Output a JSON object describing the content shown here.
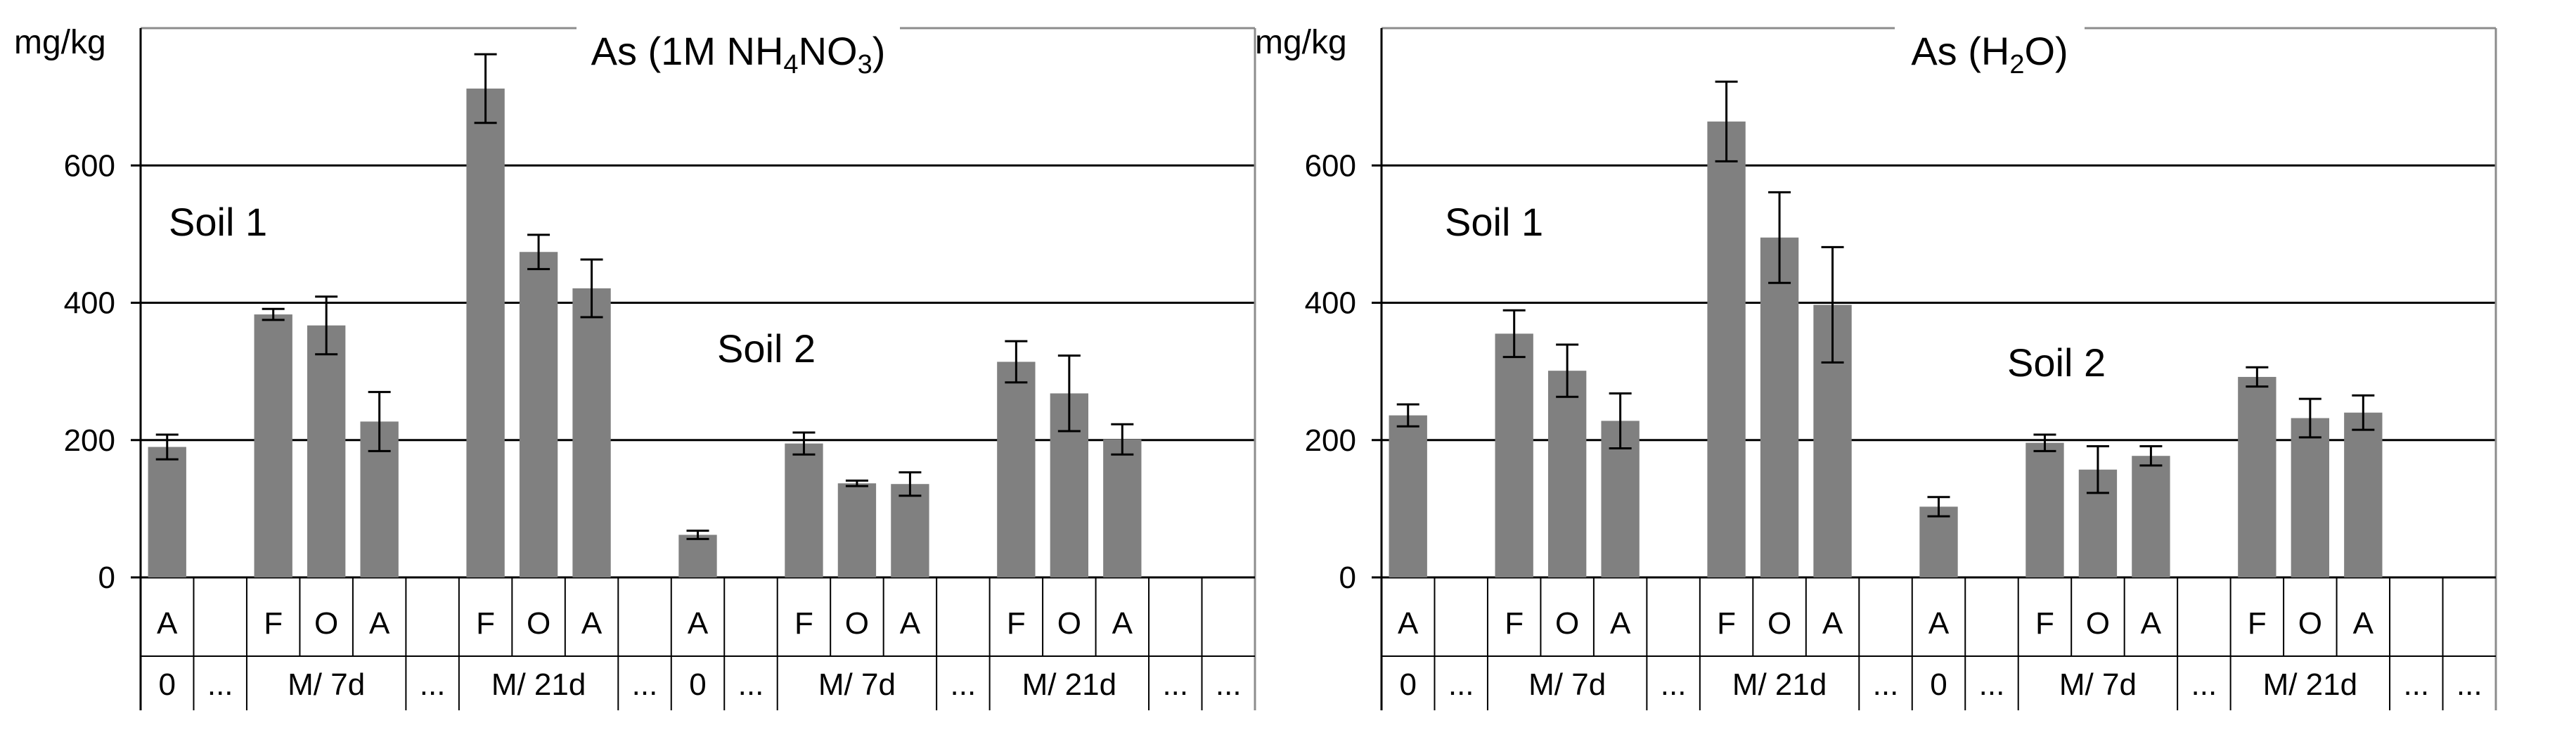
{
  "chart_data": [
    {
      "type": "bar",
      "title": {
        "prefix": "As (1M NH",
        "sub1": "4",
        "mid": "NO",
        "sub2": "3",
        "suffix": ")"
      },
      "ylabel": "mg/kg",
      "ylim": [
        0,
        800
      ],
      "yticks": [
        0,
        200,
        400,
        600
      ],
      "grid": true,
      "annotations": [
        "Soil 1",
        "Soil 2"
      ],
      "bar_color": "#808080",
      "categories": [
        "A",
        "F",
        "O",
        "A",
        "F",
        "O",
        "A",
        "A",
        "F",
        "O",
        "A",
        "F",
        "O",
        "A"
      ],
      "values": [
        190,
        383,
        367,
        227,
        712,
        474,
        421,
        62,
        195,
        137,
        136,
        314,
        268,
        201
      ],
      "errors": [
        18,
        8,
        42,
        43,
        50,
        25,
        42,
        6,
        16,
        4,
        17,
        30,
        55,
        22
      ],
      "groups": [
        "0",
        "M/ 7d",
        "M/ 21d",
        "0",
        "M/ 7d",
        "M/ 21d"
      ],
      "ellipsis": "..."
    },
    {
      "type": "bar",
      "title": {
        "prefix": "As (H",
        "sub1": "2",
        "suffix": "O)"
      },
      "ylabel": "mg/kg",
      "ylim": [
        0,
        800
      ],
      "yticks": [
        0,
        200,
        400,
        600
      ],
      "grid": true,
      "annotations": [
        "Soil 1",
        "Soil 2"
      ],
      "bar_color": "#808080",
      "categories": [
        "A",
        "F",
        "O",
        "A",
        "F",
        "O",
        "A",
        "A",
        "F",
        "O",
        "A",
        "F",
        "O",
        "A"
      ],
      "values": [
        236,
        355,
        301,
        228,
        664,
        495,
        397,
        103,
        196,
        157,
        177,
        292,
        232,
        240
      ],
      "errors": [
        16,
        34,
        38,
        40,
        58,
        66,
        84,
        14,
        12,
        34,
        14,
        14,
        28,
        25
      ],
      "groups": [
        "0",
        "M/ 7d",
        "M/ 21d",
        "0",
        "M/ 7d",
        "M/ 21d"
      ],
      "ellipsis": "..."
    }
  ]
}
